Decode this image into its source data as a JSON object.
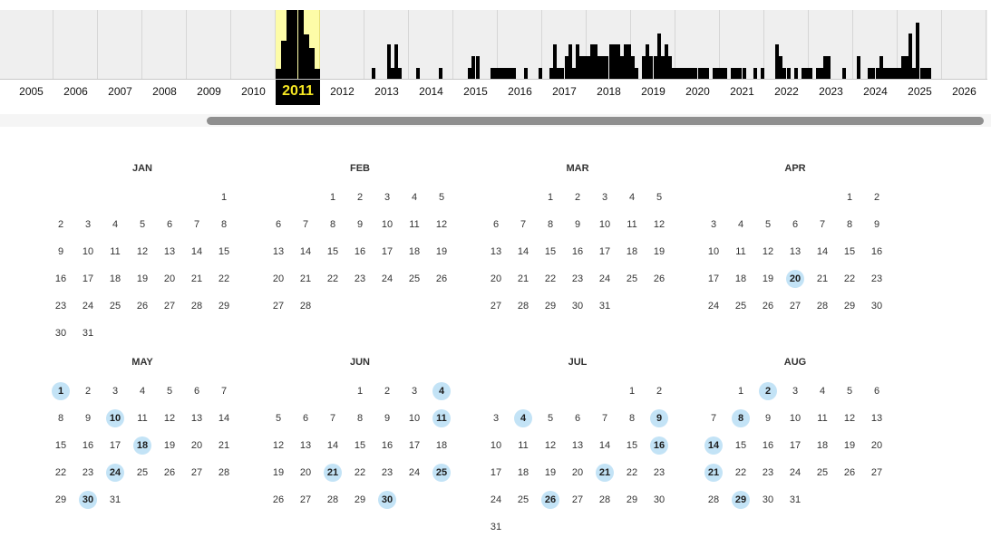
{
  "timeline": {
    "selected_year": "2011",
    "years": [
      "2005",
      "2006",
      "2007",
      "2008",
      "2009",
      "2010",
      "2011",
      "2012",
      "2013",
      "2014",
      "2015",
      "2016",
      "2017",
      "2018",
      "2019",
      "2020",
      "2021",
      "2022",
      "2023",
      "2024",
      "2025",
      "2026"
    ],
    "capture_levels": {
      "2011": [
        0.15,
        0.55,
        1.0,
        1.0,
        1.0,
        0.65,
        0.45,
        0.15
      ],
      "2013": [
        0,
        0,
        0.16,
        0,
        0,
        0,
        0.5,
        0.16,
        0.5,
        0.16,
        0,
        0
      ],
      "2014": [
        0,
        0,
        0.16,
        0,
        0,
        0,
        0,
        0,
        0.16,
        0,
        0,
        0
      ],
      "2015": [
        0,
        0,
        0,
        0,
        0.16,
        0.33,
        0.33,
        0,
        0,
        0,
        0.16,
        0.16
      ],
      "2016": [
        0.16,
        0.16,
        0.16,
        0.16,
        0.16,
        0,
        0,
        0.16,
        0,
        0,
        0,
        0.16
      ],
      "2017": [
        0,
        0,
        0.16,
        0.5,
        0.16,
        0.16,
        0.33,
        0.5,
        0.16,
        0.5,
        0.33,
        0.33
      ],
      "2018": [
        0.33,
        0.5,
        0.5,
        0.33,
        0.33,
        0.33,
        0.5,
        0.5,
        0.5,
        0.33,
        0.5,
        0.5
      ],
      "2019": [
        0.33,
        0.16,
        0,
        0.33,
        0.5,
        0.33,
        0.33,
        0.66,
        0.33,
        0.5,
        0.33,
        0.16
      ],
      "2020": [
        0.16,
        0.16,
        0.16,
        0.16,
        0.16,
        0.16,
        0.16,
        0.16,
        0.16,
        0,
        0.16,
        0.16
      ],
      "2021": [
        0.16,
        0.16,
        0,
        0.16,
        0.16,
        0.16,
        0.16,
        0,
        0,
        0.16,
        0,
        0.16
      ],
      "2022": [
        0,
        0,
        0,
        0.5,
        0.33,
        0.16,
        0.16,
        0,
        0.16,
        0,
        0.16,
        0.16
      ],
      "2023": [
        0.16,
        0,
        0.16,
        0.16,
        0.33,
        0.33,
        0,
        0,
        0,
        0.16,
        0,
        0
      ],
      "2024": [
        0,
        0.33,
        0,
        0,
        0.16,
        0.16,
        0.16,
        0.33,
        0.16,
        0.16,
        0.16,
        0.16
      ],
      "2025": [
        0.16,
        0.33,
        0.33,
        0.66,
        0.16,
        0.82,
        0.16,
        0.16,
        0.16,
        0,
        0,
        0
      ]
    }
  },
  "calendar": {
    "months": [
      {
        "name": "JAN",
        "start_weekday": 6,
        "days": 31,
        "snapshots": []
      },
      {
        "name": "FEB",
        "start_weekday": 2,
        "days": 28,
        "snapshots": []
      },
      {
        "name": "MAR",
        "start_weekday": 2,
        "days": 31,
        "snapshots": []
      },
      {
        "name": "APR",
        "start_weekday": 5,
        "days": 30,
        "snapshots": [
          20
        ]
      },
      {
        "name": "MAY",
        "start_weekday": 0,
        "days": 31,
        "snapshots": [
          1,
          10,
          18,
          24,
          30
        ]
      },
      {
        "name": "JUN",
        "start_weekday": 3,
        "days": 30,
        "snapshots": [
          4,
          11,
          21,
          25,
          30
        ]
      },
      {
        "name": "JUL",
        "start_weekday": 5,
        "days": 31,
        "snapshots": [
          4,
          9,
          16,
          21,
          26
        ]
      },
      {
        "name": "AUG",
        "start_weekday": 1,
        "days": 31,
        "snapshots": [
          2,
          8,
          14,
          21,
          29
        ]
      }
    ]
  }
}
